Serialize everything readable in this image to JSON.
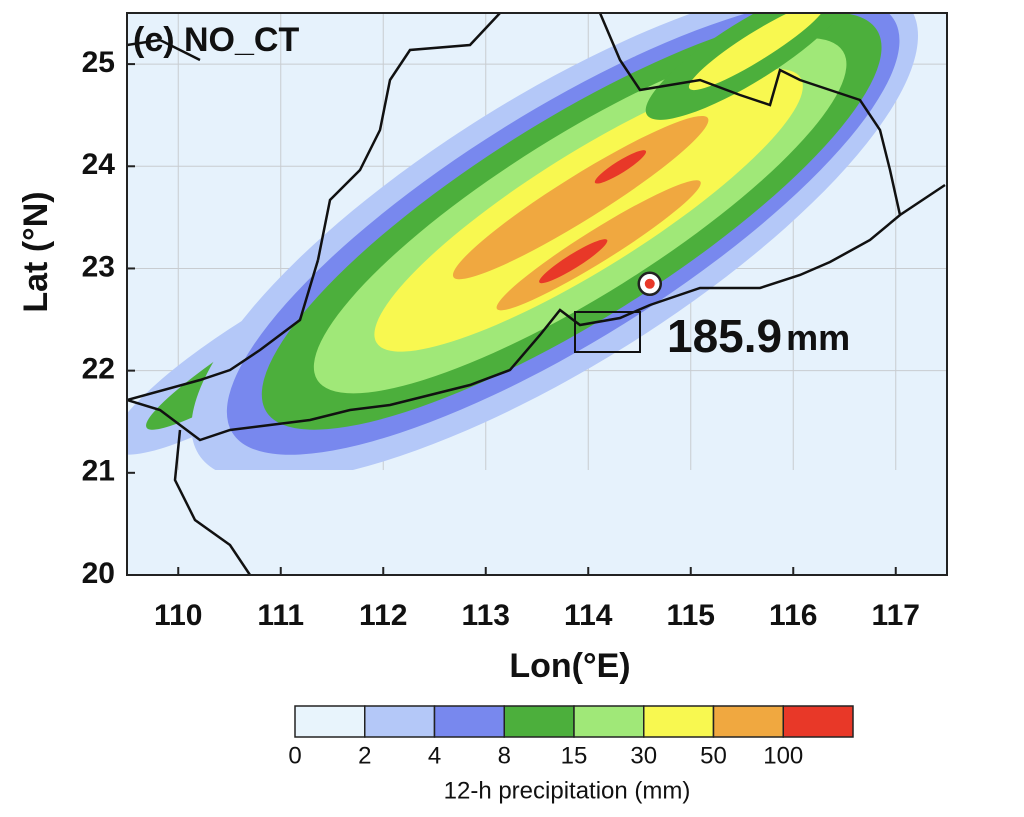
{
  "title": "(c) NO_CT",
  "x_axis": {
    "label": "Lon(°E)",
    "lim": [
      109.5,
      117.5
    ],
    "ticks": [
      110,
      111,
      112,
      113,
      114,
      115,
      116,
      117
    ]
  },
  "y_axis": {
    "label": "Lat (°N)",
    "lim": [
      20,
      25.5
    ],
    "ticks": [
      20,
      21,
      22,
      23,
      24,
      25
    ]
  },
  "station": {
    "lon": 114.6,
    "lat": 22.85,
    "value": "185.9",
    "unit": "mm"
  },
  "colorbar": {
    "label": "12-h precipitation (mm)",
    "levels": [
      0,
      2,
      4,
      8,
      15,
      30,
      50,
      100
    ],
    "colors": [
      "#e8f4fc",
      "#b4c8f8",
      "#7888ee",
      "#4caf3c",
      "#a0e878",
      "#f8f850",
      "#f0a840",
      "#e83828"
    ]
  }
}
